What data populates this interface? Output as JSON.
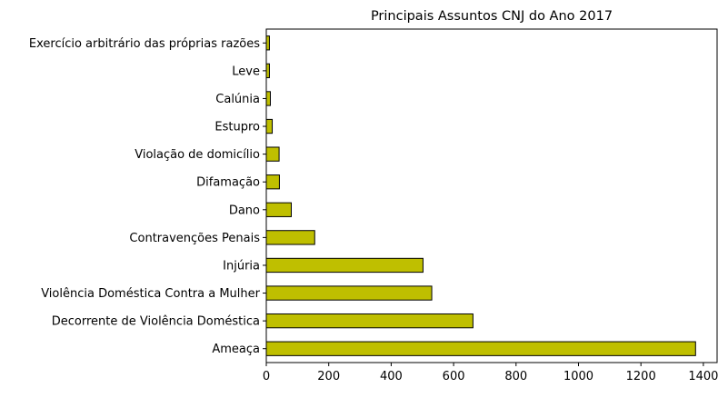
{
  "chart_data": {
    "type": "bar",
    "orientation": "horizontal",
    "title": "Principais Assuntos CNJ do Ano 2017",
    "xlabel": "",
    "ylabel": "",
    "categories": [
      "Ameaça",
      "Decorrente de Violência Doméstica",
      "Violência Doméstica Contra a Mulher",
      "Injúria",
      "Contravenções Penais",
      "Dano",
      "Difamação",
      "Violação de domicílio",
      "Estupro",
      "Calúnia",
      "Leve",
      "Exercício arbitrário das próprias razões"
    ],
    "values": [
      1375,
      662,
      530,
      502,
      155,
      80,
      42,
      41,
      19,
      13,
      10,
      10
    ],
    "xlim": [
      0,
      1444
    ],
    "xticks": [
      0,
      200,
      400,
      600,
      800,
      1000,
      1200,
      1400
    ],
    "xtick_labels": [
      "0",
      "200",
      "400",
      "600",
      "800",
      "1000",
      "1200",
      "1400"
    ],
    "bar_color": "#bfbf00",
    "edge_color": "#000000",
    "grid": false,
    "legend": "none"
  }
}
